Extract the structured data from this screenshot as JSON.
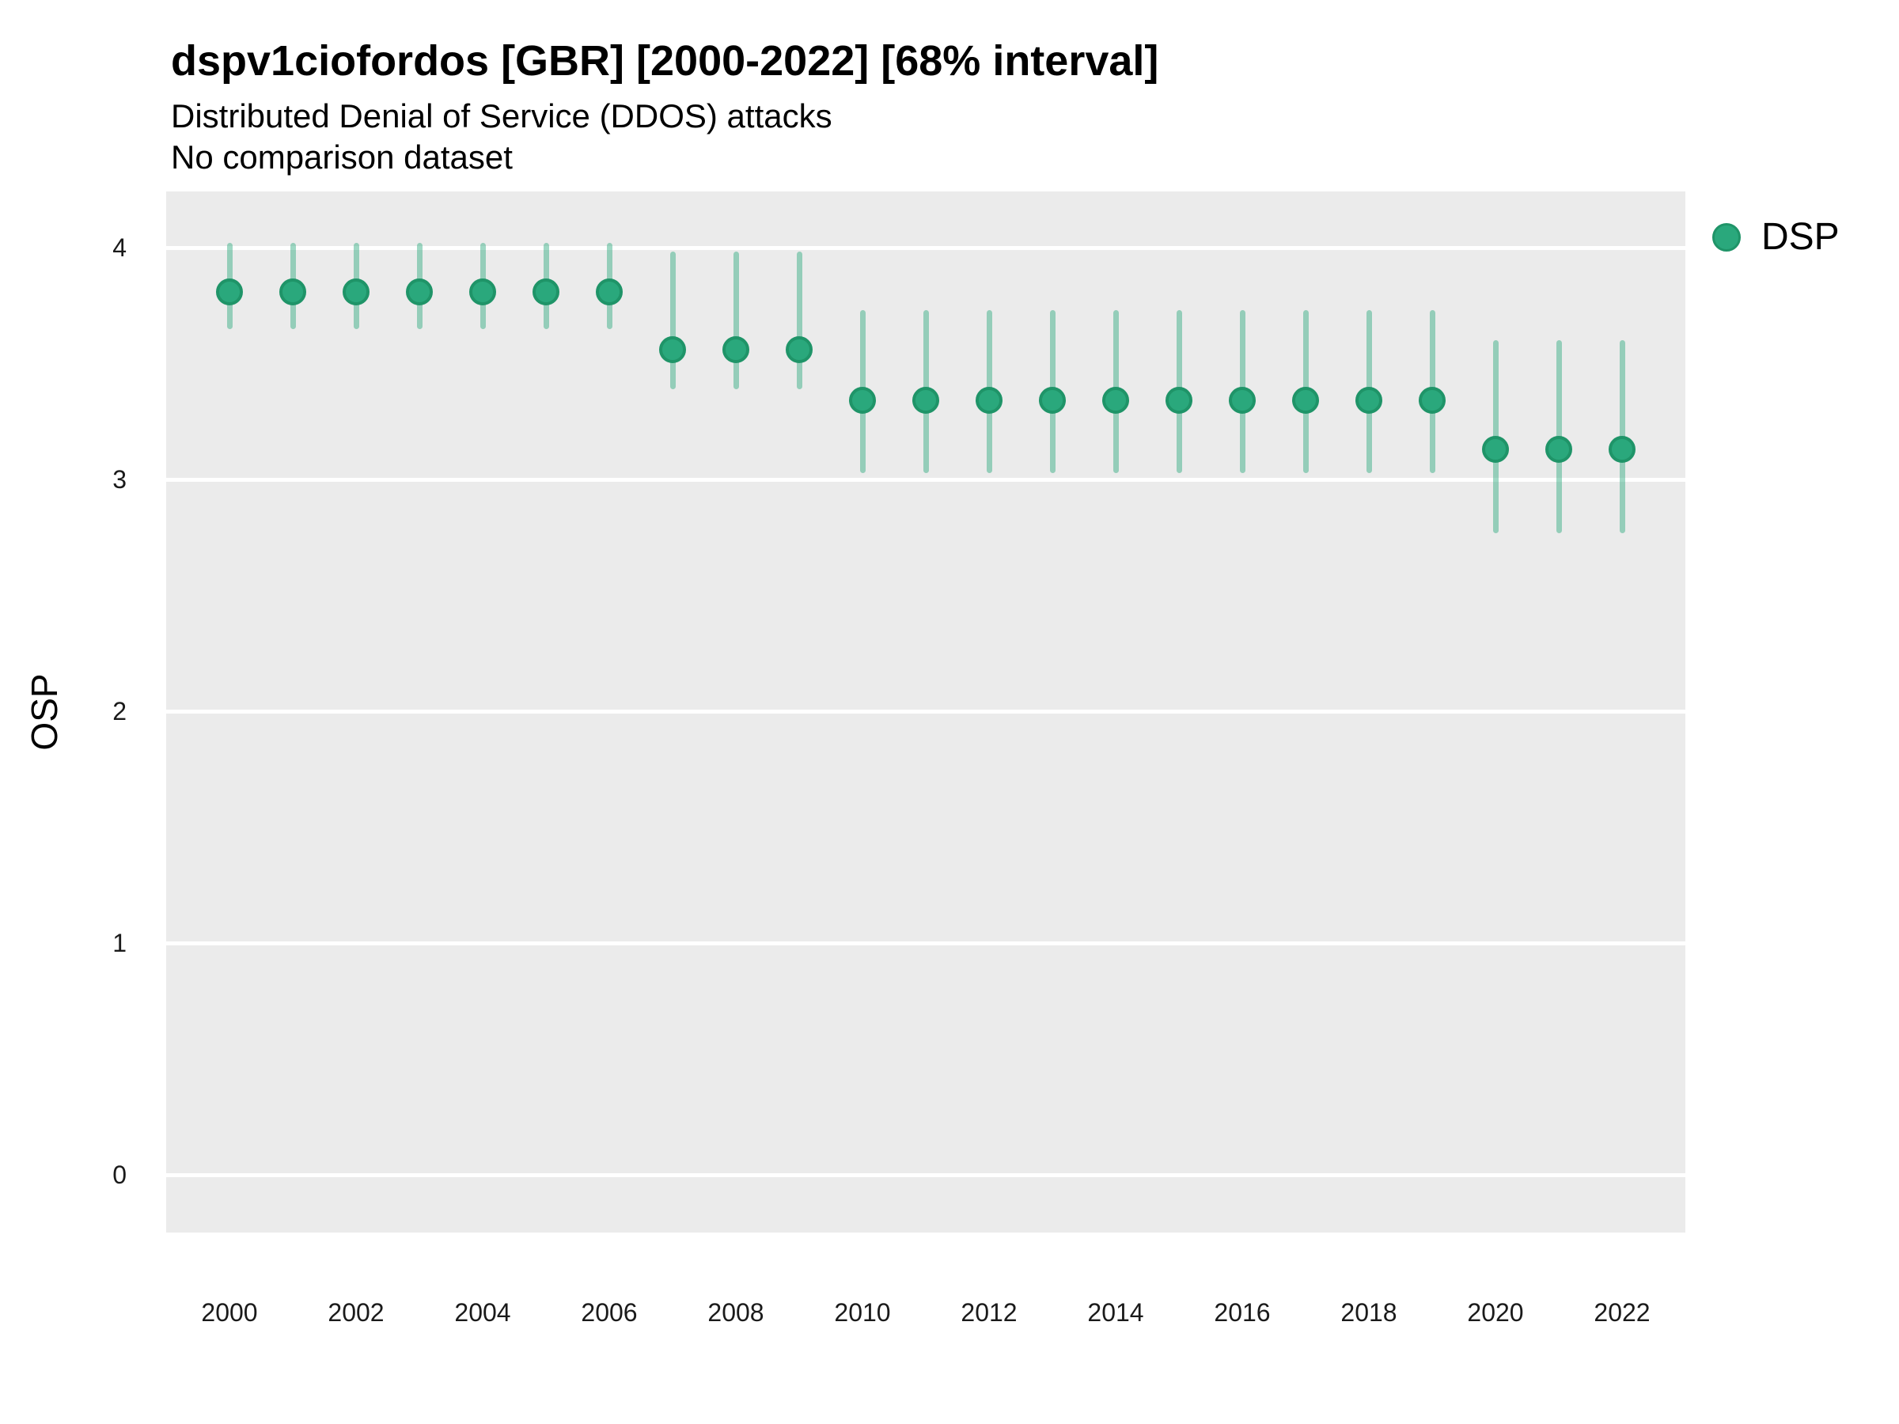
{
  "header": {
    "title": "dspv1ciofordos [GBR] [2000-2022] [68% interval]",
    "subtitle": "Distributed Denial of Service (DDOS) attacks",
    "note": "No comparison dataset"
  },
  "legend": {
    "label": "DSP"
  },
  "colors": {
    "point_fill": "#2aa87c",
    "point_border": "#1f9468",
    "interval_bar": "rgba(42,168,124,0.45)",
    "panel_background": "#ebebeb",
    "gridline": "#ffffff"
  },
  "chart_data": {
    "type": "pointrange",
    "title": "dspv1ciofordos [GBR] [2000-2022] [68% interval]",
    "subtitle": "Distributed Denial of Service (DDOS) attacks",
    "note": "No comparison dataset",
    "series_name": "DSP",
    "interval": "68%",
    "xlabel": "",
    "ylabel": "OSP",
    "x_tick_labels": [
      "2000",
      "2002",
      "2004",
      "2006",
      "2008",
      "2010",
      "2012",
      "2014",
      "2016",
      "2018",
      "2020",
      "2022"
    ],
    "y_tick_values": [
      0,
      1,
      2,
      3,
      4
    ],
    "xlim": [
      1999,
      2023
    ],
    "ylim": [
      -0.25,
      4.25
    ],
    "grid": "major-horizontal",
    "legend_position": "right-top",
    "points": [
      {
        "year": 2000,
        "value": 3.81,
        "lo": 3.66,
        "hi": 4.01
      },
      {
        "year": 2001,
        "value": 3.81,
        "lo": 3.66,
        "hi": 4.01
      },
      {
        "year": 2002,
        "value": 3.81,
        "lo": 3.66,
        "hi": 4.01
      },
      {
        "year": 2003,
        "value": 3.81,
        "lo": 3.66,
        "hi": 4.01
      },
      {
        "year": 2004,
        "value": 3.81,
        "lo": 3.66,
        "hi": 4.01
      },
      {
        "year": 2005,
        "value": 3.81,
        "lo": 3.66,
        "hi": 4.01
      },
      {
        "year": 2006,
        "value": 3.81,
        "lo": 3.66,
        "hi": 4.01
      },
      {
        "year": 2007,
        "value": 3.56,
        "lo": 3.4,
        "hi": 3.97
      },
      {
        "year": 2008,
        "value": 3.56,
        "lo": 3.4,
        "hi": 3.97
      },
      {
        "year": 2009,
        "value": 3.56,
        "lo": 3.4,
        "hi": 3.97
      },
      {
        "year": 2010,
        "value": 3.34,
        "lo": 3.04,
        "hi": 3.72
      },
      {
        "year": 2011,
        "value": 3.34,
        "lo": 3.04,
        "hi": 3.72
      },
      {
        "year": 2012,
        "value": 3.34,
        "lo": 3.04,
        "hi": 3.72
      },
      {
        "year": 2013,
        "value": 3.34,
        "lo": 3.04,
        "hi": 3.72
      },
      {
        "year": 2014,
        "value": 3.34,
        "lo": 3.04,
        "hi": 3.72
      },
      {
        "year": 2015,
        "value": 3.34,
        "lo": 3.04,
        "hi": 3.72
      },
      {
        "year": 2016,
        "value": 3.34,
        "lo": 3.04,
        "hi": 3.72
      },
      {
        "year": 2017,
        "value": 3.34,
        "lo": 3.04,
        "hi": 3.72
      },
      {
        "year": 2018,
        "value": 3.34,
        "lo": 3.04,
        "hi": 3.72
      },
      {
        "year": 2019,
        "value": 3.34,
        "lo": 3.04,
        "hi": 3.72
      },
      {
        "year": 2020,
        "value": 3.13,
        "lo": 2.78,
        "hi": 3.59
      },
      {
        "year": 2021,
        "value": 3.13,
        "lo": 2.78,
        "hi": 3.59
      },
      {
        "year": 2022,
        "value": 3.13,
        "lo": 2.78,
        "hi": 3.59
      }
    ]
  }
}
